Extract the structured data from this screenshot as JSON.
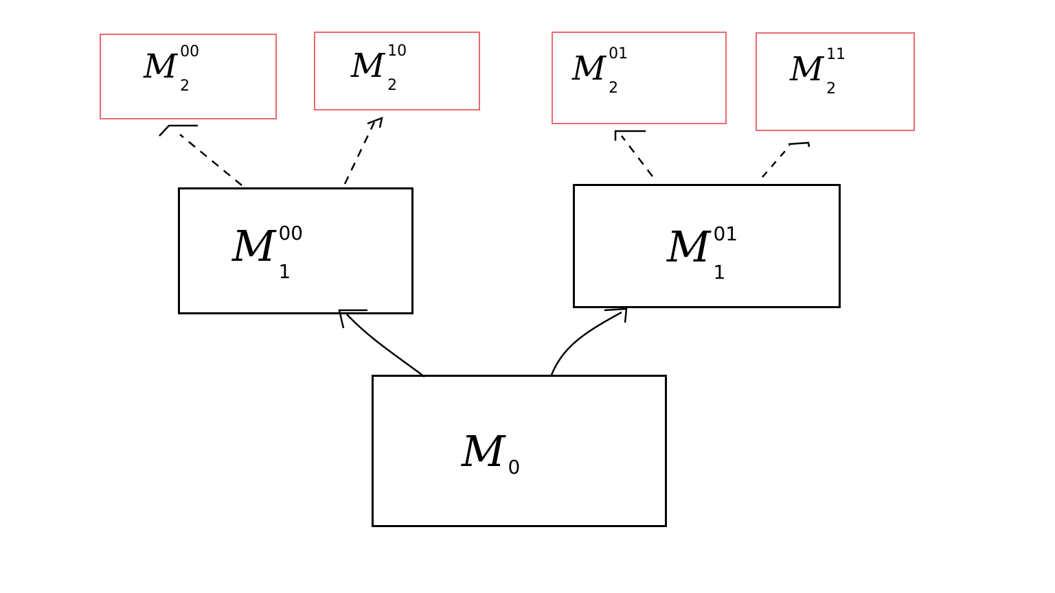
{
  "diagram": {
    "root": {
      "base": "M",
      "sub": "0",
      "sup": ""
    },
    "level1": [
      {
        "base": "M",
        "sub": "1",
        "sup": "00"
      },
      {
        "base": "M",
        "sub": "1",
        "sup": "01"
      }
    ],
    "level2": [
      {
        "base": "M",
        "sub": "2",
        "sup": "00"
      },
      {
        "base": "M",
        "sub": "2",
        "sup": "10"
      },
      {
        "base": "M",
        "sub": "2",
        "sup": "01"
      },
      {
        "base": "M",
        "sub": "2",
        "sup": "11"
      }
    ],
    "colors": {
      "solid_box": "#000000",
      "tentative_box": "#e8696f",
      "edge": "#000000"
    }
  }
}
